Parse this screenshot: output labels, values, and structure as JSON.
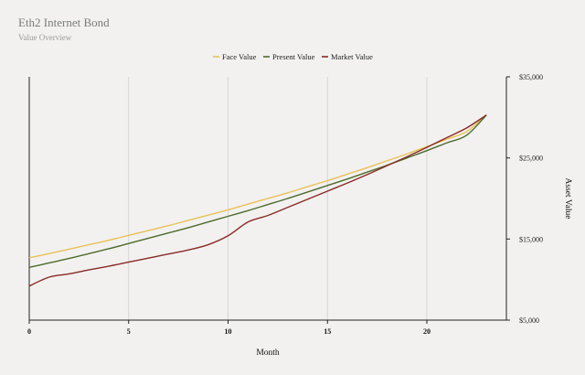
{
  "header": {
    "title": "Eth2 Internet Bond",
    "subtitle": "Value Overview"
  },
  "chart_data": {
    "type": "line",
    "title": "Eth2 Internet Bond",
    "subtitle": "Value Overview",
    "xlabel": "Month",
    "ylabel": "Asset Value",
    "xlim": [
      0,
      24
    ],
    "ylim": [
      5000,
      35000
    ],
    "x_ticks": [
      0,
      5,
      10,
      15,
      20
    ],
    "y_ticks": [
      5000,
      15000,
      25000,
      35000
    ],
    "y_tick_labels": [
      "$5,000",
      "$15,000",
      "$25,000",
      "$35,000"
    ],
    "y_axis_side": "right",
    "grid": "vertical",
    "legend_position": "top-center",
    "x": [
      0,
      1,
      2,
      3,
      4,
      5,
      6,
      7,
      8,
      9,
      10,
      11,
      12,
      13,
      14,
      15,
      16,
      17,
      18,
      19,
      20,
      21,
      22,
      23
    ],
    "series": [
      {
        "name": "Face Value",
        "color": "#e8c257",
        "values": [
          12700,
          13200,
          13750,
          14300,
          14850,
          15450,
          16050,
          16650,
          17300,
          17950,
          18600,
          19300,
          20000,
          20700,
          21450,
          22200,
          23000,
          23800,
          24650,
          25500,
          26400,
          27300,
          28250,
          30300
        ]
      },
      {
        "name": "Present Value",
        "color": "#4d6b2c",
        "values": [
          11500,
          12050,
          12600,
          13200,
          13800,
          14450,
          15100,
          15750,
          16400,
          17100,
          17800,
          18500,
          19250,
          20000,
          20800,
          21600,
          22400,
          23250,
          24100,
          25000,
          25900,
          26850,
          27800,
          30300
        ]
      },
      {
        "name": "Market Value",
        "color": "#8a2a24",
        "values": [
          9200,
          10300,
          10700,
          11200,
          11650,
          12150,
          12650,
          13150,
          13650,
          14300,
          15400,
          17100,
          17900,
          18900,
          19900,
          20900,
          21900,
          22950,
          24050,
          25150,
          26300,
          27500,
          28700,
          30300
        ]
      }
    ]
  }
}
